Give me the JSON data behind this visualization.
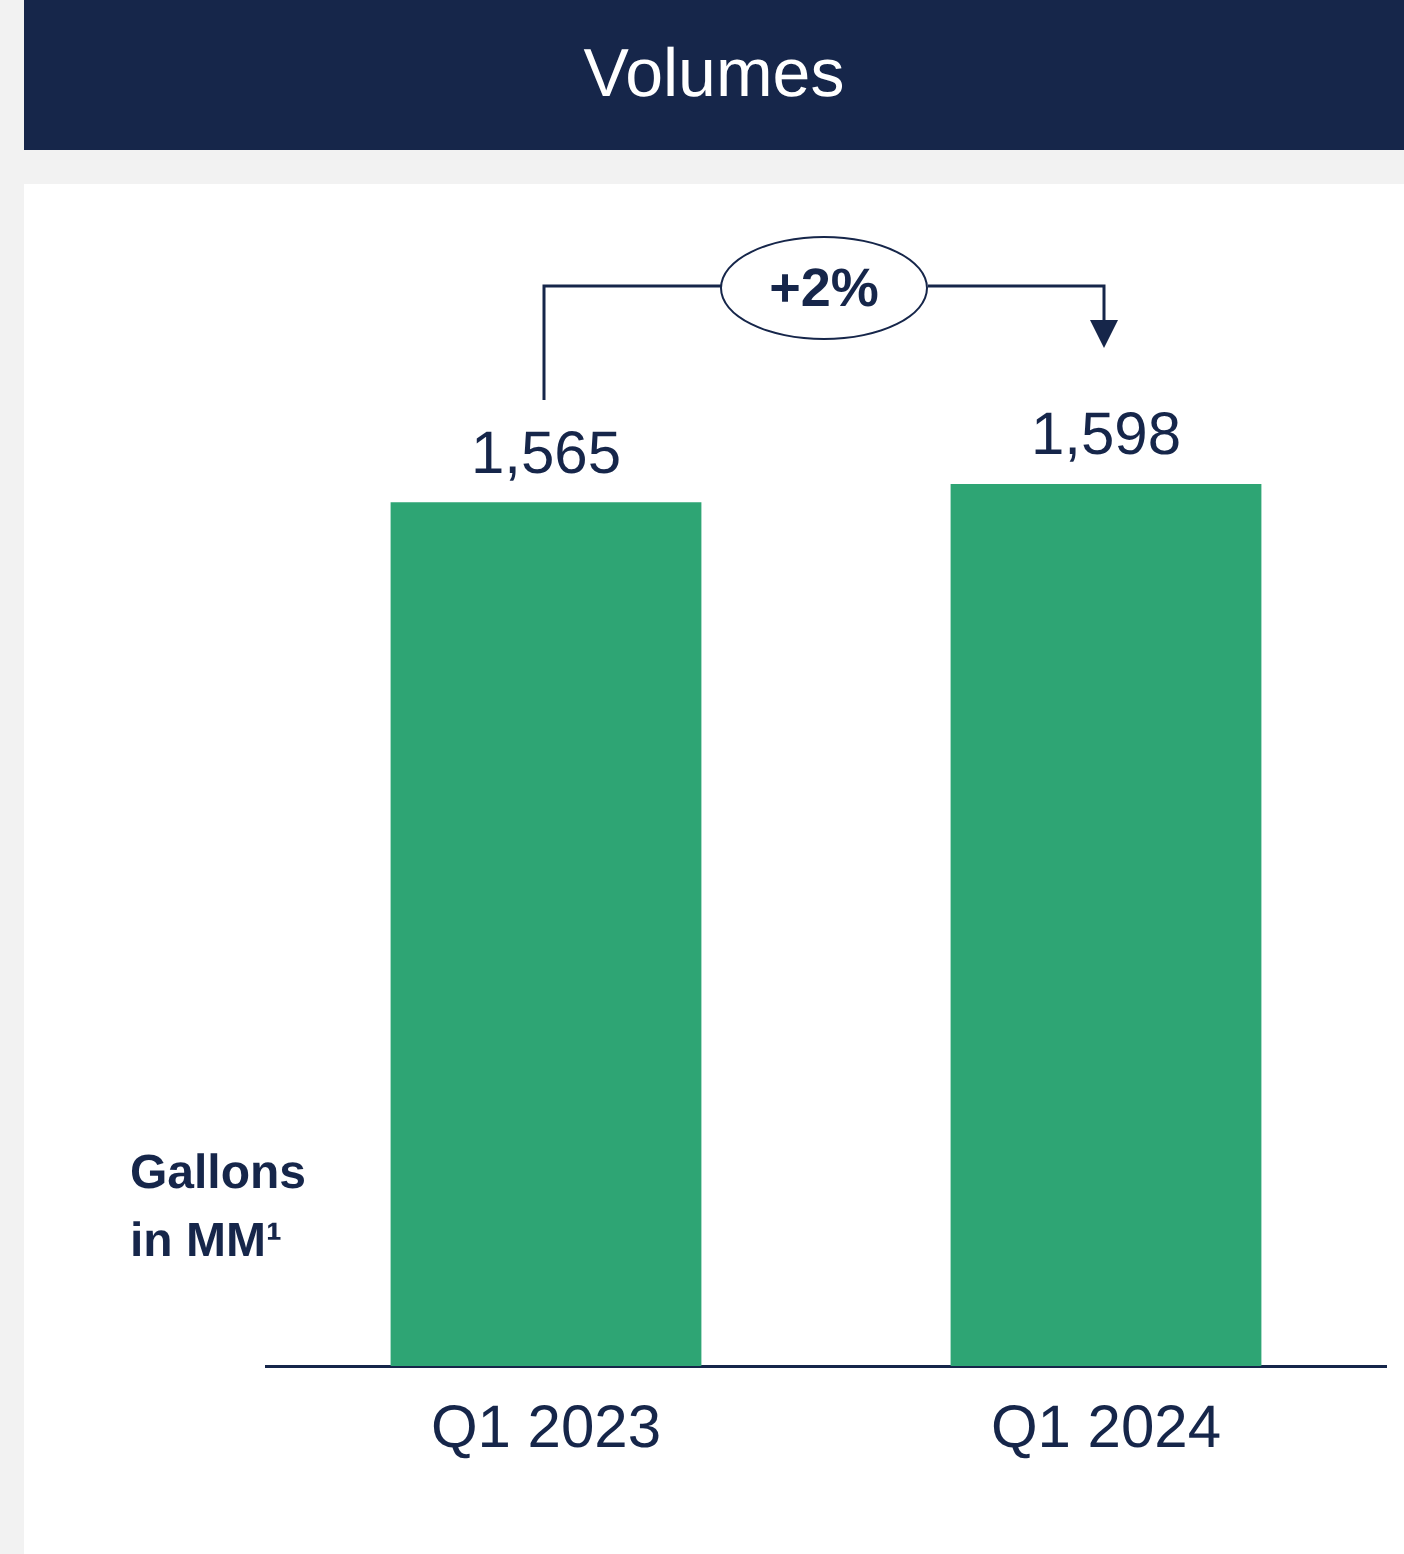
{
  "chart_data": {
    "type": "bar",
    "title": "Volumes",
    "ylabel": "Gallons in MM¹",
    "categories": [
      "Q1 2023",
      "Q1 2024"
    ],
    "values": [
      1565,
      1598
    ],
    "value_labels": [
      "1,565",
      "1,598"
    ],
    "color": "#2ea574",
    "annotations": [
      "+2%"
    ],
    "legend": false,
    "grid": false
  }
}
